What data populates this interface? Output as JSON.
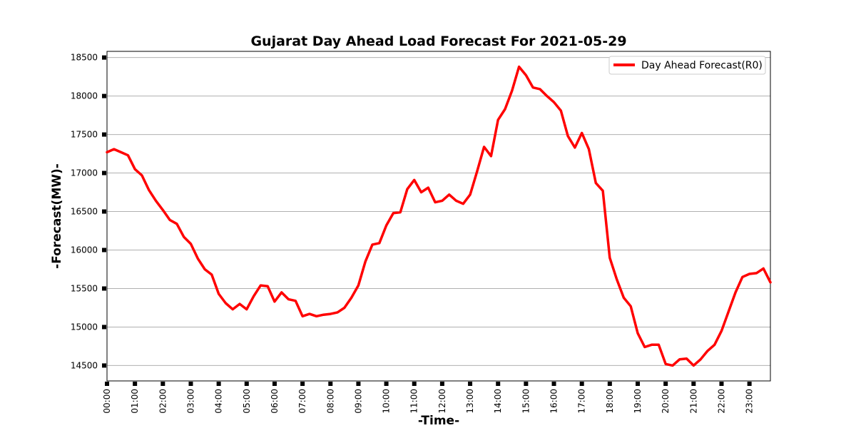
{
  "chart_data": {
    "type": "line",
    "title": "Gujarat Day Ahead Load Forecast For 2021-05-29",
    "xlabel": "-Time-",
    "ylabel": "-Forecast(MW)-",
    "ylim": [
      14300,
      18580
    ],
    "yticks": [
      14500,
      15000,
      15500,
      16000,
      16500,
      17000,
      17500,
      18000,
      18500
    ],
    "xticks": [
      "00:00",
      "01:00",
      "02:00",
      "03:00",
      "04:00",
      "05:00",
      "06:00",
      "07:00",
      "08:00",
      "09:00",
      "10:00",
      "11:00",
      "12:00",
      "13:00",
      "14:00",
      "15:00",
      "16:00",
      "17:00",
      "18:00",
      "19:00",
      "20:00",
      "21:00",
      "22:00",
      "23:00"
    ],
    "grid": "horizontal",
    "legend_position": "top-right",
    "series": [
      {
        "name": "Day Ahead Forecast(R0)",
        "color": "#ff0000",
        "x": [
          "00:00",
          "00:15",
          "00:30",
          "00:45",
          "01:00",
          "01:15",
          "01:30",
          "01:45",
          "02:00",
          "02:15",
          "02:30",
          "02:45",
          "03:00",
          "03:15",
          "03:30",
          "03:45",
          "04:00",
          "04:15",
          "04:30",
          "04:45",
          "05:00",
          "05:15",
          "05:30",
          "05:45",
          "06:00",
          "06:15",
          "06:30",
          "06:45",
          "07:00",
          "07:15",
          "07:30",
          "07:45",
          "08:00",
          "08:15",
          "08:30",
          "08:45",
          "09:00",
          "09:15",
          "09:30",
          "09:45",
          "10:00",
          "10:15",
          "10:30",
          "10:45",
          "11:00",
          "11:15",
          "11:30",
          "11:45",
          "12:00",
          "12:15",
          "12:30",
          "12:45",
          "13:00",
          "13:15",
          "13:30",
          "13:45",
          "14:00",
          "14:15",
          "14:30",
          "14:45",
          "15:00",
          "15:15",
          "15:30",
          "15:45",
          "16:00",
          "16:15",
          "16:30",
          "16:45",
          "17:00",
          "17:15",
          "17:30",
          "17:45",
          "18:00",
          "18:15",
          "18:30",
          "18:45",
          "19:00",
          "19:15",
          "19:30",
          "19:45",
          "20:00",
          "20:15",
          "20:30",
          "20:45",
          "21:00",
          "21:15",
          "21:30",
          "21:45",
          "22:00",
          "22:15",
          "22:30",
          "22:45",
          "23:00",
          "23:15",
          "23:30",
          "23:45"
        ],
        "values": [
          17270,
          17310,
          17270,
          17230,
          17050,
          16970,
          16780,
          16640,
          16520,
          16390,
          16340,
          16170,
          16080,
          15890,
          15750,
          15680,
          15430,
          15310,
          15230,
          15300,
          15230,
          15400,
          15540,
          15530,
          15330,
          15450,
          15360,
          15340,
          15140,
          15170,
          15140,
          15160,
          15170,
          15190,
          15250,
          15380,
          15540,
          15850,
          16070,
          16090,
          16320,
          16480,
          16490,
          16790,
          16910,
          16750,
          16810,
          16620,
          16640,
          16720,
          16640,
          16600,
          16720,
          17020,
          17340,
          17220,
          17690,
          17830,
          18070,
          18380,
          18270,
          18110,
          18090,
          18000,
          17920,
          17810,
          17480,
          17330,
          17520,
          17310,
          16870,
          16770,
          15900,
          15620,
          15380,
          15270,
          14920,
          14740,
          14770,
          14770,
          14520,
          14500,
          14580,
          14590,
          14500,
          14580,
          14690,
          14770,
          14950,
          15200,
          15450,
          15650,
          15690,
          15700,
          15760,
          15580
        ]
      }
    ]
  }
}
